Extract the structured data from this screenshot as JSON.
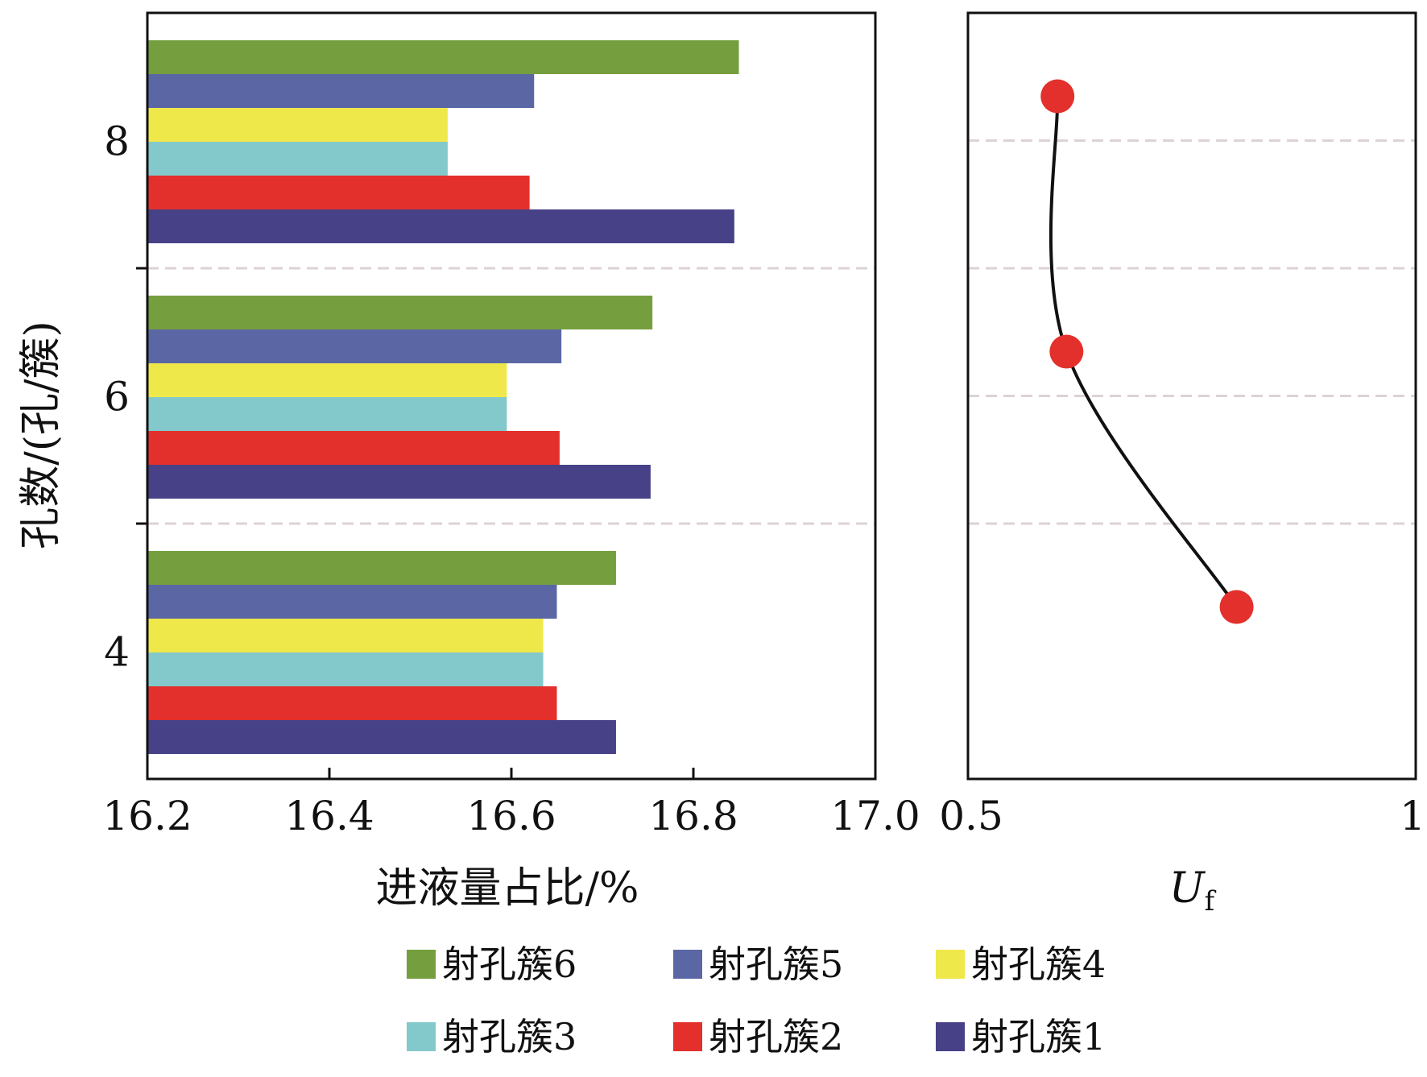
{
  "chart_data": [
    {
      "type": "bar",
      "orientation": "horizontal",
      "xlabel": "进液量占比/%",
      "ylabel": "孔数/(孔/簇)",
      "xlim": [
        16.2,
        17.0
      ],
      "x_ticks": [
        "16.2",
        "16.4",
        "16.6",
        "16.8",
        "17.0"
      ],
      "categories": [
        "8",
        "6",
        "4"
      ],
      "series": [
        {
          "name": "射孔簇6",
          "color": "#759E3F",
          "values": [
            16.85,
            16.755,
            16.715
          ]
        },
        {
          "name": "射孔簇5",
          "color": "#5B67A5",
          "values": [
            16.625,
            16.655,
            16.65
          ]
        },
        {
          "name": "射孔簇4",
          "color": "#EFE84A",
          "values": [
            16.53,
            16.595,
            16.635
          ]
        },
        {
          "name": "射孔簇3",
          "color": "#83C9CB",
          "values": [
            16.53,
            16.595,
            16.635
          ]
        },
        {
          "name": "射孔簇2",
          "color": "#E3302C",
          "values": [
            16.62,
            16.653,
            16.65
          ]
        },
        {
          "name": "射孔簇1",
          "color": "#474187",
          "values": [
            16.845,
            16.753,
            16.715
          ]
        }
      ],
      "grid": "dashed separators between groups"
    },
    {
      "type": "line",
      "xlabel": "U",
      "xlabel_sub": "f",
      "xlim": [
        0.5,
        1
      ],
      "x_ticks": [
        "0.5",
        "1"
      ],
      "categories": [
        "8",
        "6",
        "4"
      ],
      "values": [
        0.6,
        0.61,
        0.8
      ],
      "marker_color": "#E3302C",
      "line_color": "#111111",
      "grid": "horizontal dashed lines"
    }
  ],
  "legend": {
    "items": [
      {
        "label": "射孔簇6",
        "color": "#759E3F"
      },
      {
        "label": "射孔簇5",
        "color": "#5B67A5"
      },
      {
        "label": "射孔簇4",
        "color": "#EFE84A"
      },
      {
        "label": "射孔簇3",
        "color": "#83C9CB"
      },
      {
        "label": "射孔簇2",
        "color": "#E3302C"
      },
      {
        "label": "射孔簇1",
        "color": "#474187"
      }
    ]
  }
}
